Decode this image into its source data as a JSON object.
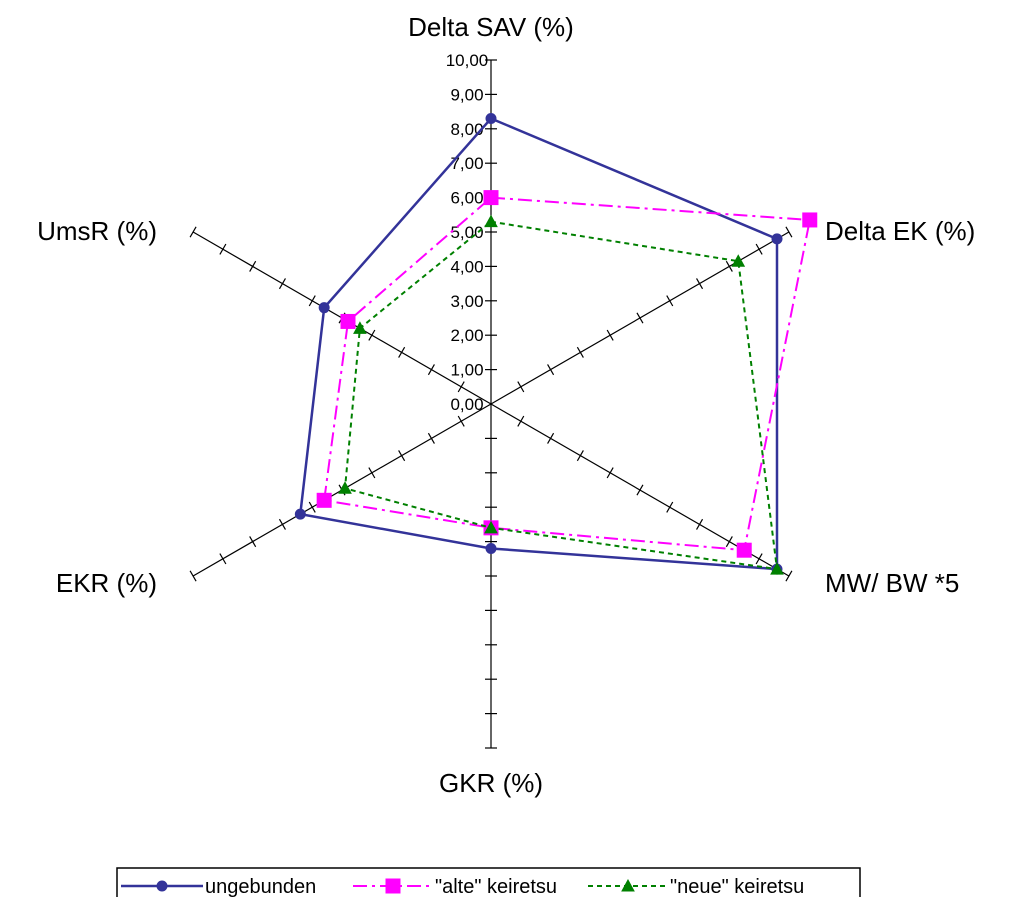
{
  "chart_data": {
    "type": "radar",
    "axes": [
      "Delta SAV (%)",
      "Delta EK (%)",
      "MW/ BW *5",
      "GKR (%)",
      "EKR (%)",
      "UmsR (%)"
    ],
    "scale": {
      "min": 0,
      "max": 10,
      "step": 1,
      "tick_labels": [
        "0,00",
        "1,00",
        "2,00",
        "3,00",
        "4,00",
        "5,00",
        "6,00",
        "7,00",
        "8,00",
        "9,00",
        "10,00"
      ]
    },
    "series": [
      {
        "name": "ungebunden",
        "values": [
          8.3,
          9.6,
          9.6,
          4.2,
          6.4,
          5.6
        ],
        "color": "#333399",
        "marker": "circle",
        "dash": "solid"
      },
      {
        "name": "\"alte\" keiretsu",
        "values": [
          6.0,
          10.7,
          8.5,
          3.6,
          5.6,
          4.8
        ],
        "color": "#ff00ff",
        "marker": "square",
        "dash": "dashdot"
      },
      {
        "name": "\"neue\" keiretsu",
        "values": [
          5.3,
          8.3,
          9.6,
          3.6,
          4.9,
          4.4
        ],
        "color": "#008000",
        "marker": "triangle",
        "dash": "dotted"
      }
    ],
    "legend": {
      "placement": "bottom"
    }
  }
}
